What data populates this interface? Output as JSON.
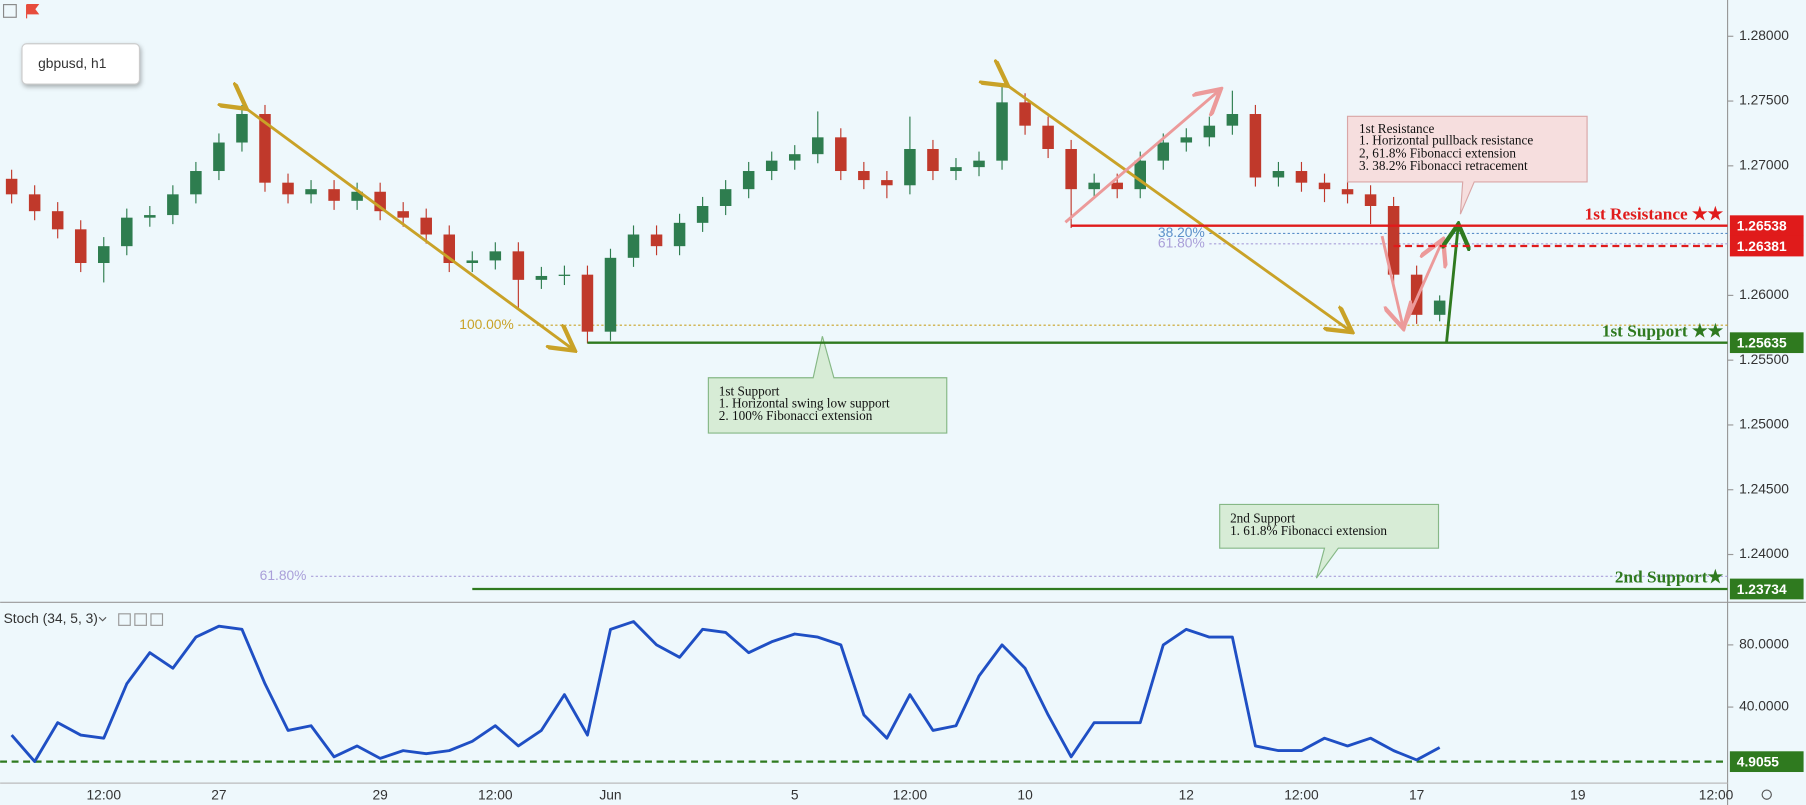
{
  "title": "gbpusd, h1",
  "chart_data": [
    {
      "type": "candlestick",
      "categories": [
        null,
        null,
        null,
        null,
        "12:00",
        null,
        null,
        null,
        null,
        "27",
        null,
        null,
        null,
        null,
        null,
        null,
        "29",
        null,
        null,
        null,
        null,
        "12:00",
        null,
        null,
        null,
        null,
        "Jun",
        null,
        null,
        null,
        null,
        null,
        null,
        null,
        "5",
        null,
        null,
        null,
        null,
        "12:00",
        null,
        null,
        null,
        null,
        "10",
        null,
        null,
        null,
        null,
        null,
        null,
        "12",
        null,
        null,
        null,
        null,
        "12:00",
        null,
        null,
        null,
        null,
        "17",
        null,
        null,
        null,
        null,
        null,
        null,
        "19",
        null,
        null,
        null,
        null,
        null,
        "12:00"
      ],
      "open": [
        1.269,
        1.2678,
        1.2665,
        1.2651,
        1.2625,
        1.2638,
        1.266,
        1.2662,
        1.2678,
        1.2696,
        1.2718,
        1.274,
        1.2687,
        1.2678,
        1.2682,
        1.2673,
        1.268,
        1.2665,
        1.266,
        1.2647,
        1.2625,
        1.2627,
        1.2634,
        1.2612,
        1.2615,
        1.2616,
        1.2572,
        1.2629,
        1.2647,
        1.2638,
        1.2656,
        1.2669,
        1.2682,
        1.2696,
        1.2704,
        1.2709,
        1.2722,
        1.2696,
        1.2689,
        1.2685,
        1.2713,
        1.2696,
        1.2699,
        1.2704,
        1.2749,
        1.2731,
        1.2713,
        1.2682,
        1.2687,
        1.2682,
        1.2704,
        1.2718,
        1.2722,
        1.2731,
        1.274,
        1.2691,
        1.2696,
        1.2687,
        1.2682,
        1.2678,
        1.2669,
        1.2616,
        1.2585,
        null,
        null,
        null,
        null,
        null,
        null,
        null,
        null,
        null,
        null,
        null,
        null
      ],
      "high": [
        1.2697,
        1.2685,
        1.2672,
        1.2658,
        1.2645,
        1.2667,
        1.2669,
        1.2685,
        1.2703,
        1.2725,
        1.2747,
        1.2747,
        1.2694,
        1.2689,
        1.2689,
        1.2687,
        1.2687,
        1.2672,
        1.2667,
        1.2654,
        1.2634,
        1.2641,
        1.2641,
        1.2622,
        1.2623,
        1.2623,
        1.2636,
        1.2654,
        1.2654,
        1.2663,
        1.2676,
        1.2689,
        1.2703,
        1.2711,
        1.2716,
        1.2742,
        1.2729,
        1.2703,
        1.2696,
        1.2738,
        1.272,
        1.2706,
        1.2711,
        1.2762,
        1.2756,
        1.2738,
        1.272,
        1.2694,
        1.2694,
        1.2711,
        1.2725,
        1.2729,
        1.2738,
        1.2758,
        1.2747,
        1.2703,
        1.2703,
        1.2694,
        1.2689,
        1.2685,
        1.2676,
        1.2623,
        1.26,
        null,
        null,
        null,
        null,
        null,
        null,
        null,
        null,
        null,
        null,
        null,
        null
      ],
      "low": [
        1.2671,
        1.2658,
        1.2644,
        1.2618,
        1.261,
        1.2631,
        1.2653,
        1.2655,
        1.2671,
        1.2689,
        1.2711,
        1.268,
        1.2671,
        1.2671,
        1.2666,
        1.2666,
        1.2658,
        1.2653,
        1.264,
        1.2618,
        1.2618,
        1.262,
        1.259,
        1.2605,
        1.2608,
        1.2563,
        1.2565,
        1.2622,
        1.2631,
        1.2631,
        1.2649,
        1.2662,
        1.2675,
        1.2689,
        1.2697,
        1.2702,
        1.2689,
        1.2682,
        1.2675,
        1.2678,
        1.2689,
        1.2689,
        1.2692,
        1.2697,
        1.2724,
        1.2706,
        1.2652,
        1.2675,
        1.2675,
        1.2675,
        1.2697,
        1.2711,
        1.2715,
        1.2724,
        1.2684,
        1.2684,
        1.268,
        1.2672,
        1.2671,
        1.2655,
        1.2605,
        1.2578,
        1.258,
        null,
        null,
        null,
        null,
        null,
        null,
        null,
        null,
        null,
        null,
        null,
        null
      ],
      "close": [
        1.2678,
        1.2665,
        1.2651,
        1.2625,
        1.2638,
        1.266,
        1.2662,
        1.2678,
        1.2696,
        1.2718,
        1.274,
        1.2687,
        1.2678,
        1.2682,
        1.2673,
        1.268,
        1.2665,
        1.266,
        1.2647,
        1.2625,
        1.2627,
        1.2634,
        1.2612,
        1.2615,
        1.2616,
        1.2572,
        1.2629,
        1.2647,
        1.2638,
        1.2656,
        1.2669,
        1.2682,
        1.2696,
        1.2704,
        1.2709,
        1.2722,
        1.2696,
        1.2689,
        1.2685,
        1.2713,
        1.2696,
        1.2699,
        1.2704,
        1.2749,
        1.2731,
        1.2713,
        1.2682,
        1.2687,
        1.2682,
        1.2704,
        1.2718,
        1.2722,
        1.2731,
        1.274,
        1.2691,
        1.2696,
        1.2687,
        1.2682,
        1.2678,
        1.2669,
        1.2616,
        1.2585,
        1.2596,
        null,
        null,
        null,
        null,
        null,
        null,
        null,
        null,
        null,
        null,
        null,
        null
      ],
      "up_color": "#2e7d4f",
      "down_color": "#c0392b",
      "ylim": [
        1.2364,
        1.2828
      ],
      "yticks": [
        {
          "value": 1.28,
          "label": "1.28000"
        },
        {
          "value": 1.275,
          "label": "1.27500"
        },
        {
          "value": 1.27,
          "label": "1.27000"
        },
        {
          "value": 1.26,
          "label": "1.26000"
        },
        {
          "value": 1.255,
          "label": "1.25500"
        },
        {
          "value": 1.25,
          "label": "1.25000"
        },
        {
          "value": 1.245,
          "label": "1.24500"
        },
        {
          "value": 1.24,
          "label": "1.24000"
        }
      ],
      "levels": [
        {
          "name": "1st Resistance ★★",
          "value": 1.26538,
          "color": "#e01b1b",
          "dash": false,
          "from": 46
        },
        {
          "value": 1.26381,
          "color": "#e01b1b",
          "dash": true,
          "from": 60
        },
        {
          "name": "1st Support ★★",
          "value": 1.25635,
          "color": "#2f7a1f",
          "dash": false,
          "from": 25
        },
        {
          "name": "2nd Support★",
          "value": 1.23734,
          "color": "#2f7a1f",
          "dash": false,
          "from": 20
        }
      ],
      "fibs": [
        {
          "label": "38.20%",
          "value": 1.26478,
          "color": "#5b8fc9",
          "from": 52
        },
        {
          "label": "61.80%",
          "value": 1.26398,
          "color": "#a99fd9",
          "from": 52
        },
        {
          "label": "100.00%",
          "value": 1.2577,
          "color": "#c9a227",
          "from": 22
        },
        {
          "label": "61.80%",
          "value": 1.23832,
          "color": "#a99fd9",
          "from": 13
        }
      ],
      "callouts": [
        {
          "lines": [
            "1st Resistance",
            "1. Horizontal pullback resistance",
            "2, 61.8% Fibonacci extension",
            "3. 38.2% Fibonacci retracement"
          ]
        },
        {
          "lines": [
            "1st Support",
            "1.  Horizontal swing low support",
            "2. 100% Fibonacci extension"
          ]
        },
        {
          "lines": [
            "2nd  Support",
            "1. 61.8% Fibonacci extension"
          ]
        }
      ]
    },
    {
      "type": "line",
      "title": "Stoch (34, 5, 3)",
      "color": "#1f4fc4",
      "values": [
        22,
        5,
        30,
        22,
        20,
        55,
        75,
        65,
        85,
        92,
        90,
        55,
        25,
        28,
        8,
        15,
        7,
        12,
        10,
        12,
        18,
        28,
        15,
        25,
        48,
        22,
        90,
        95,
        80,
        72,
        90,
        88,
        75,
        82,
        87,
        85,
        80,
        35,
        20,
        48,
        25,
        28,
        60,
        80,
        65,
        35,
        8,
        30,
        30,
        30,
        80,
        90,
        85,
        85,
        15,
        12,
        12,
        20,
        15,
        20,
        12,
        6,
        14,
        null,
        null,
        null,
        null,
        null,
        null,
        null,
        null,
        null,
        null,
        null,
        null
      ],
      "ylim": [
        -8.9,
        105.9
      ],
      "yticks": [
        {
          "value": 80,
          "label": "80.0000"
        },
        {
          "value": 40,
          "label": "40.0000"
        }
      ],
      "level": 4.9055,
      "level_color": "#2f7a1f"
    }
  ]
}
